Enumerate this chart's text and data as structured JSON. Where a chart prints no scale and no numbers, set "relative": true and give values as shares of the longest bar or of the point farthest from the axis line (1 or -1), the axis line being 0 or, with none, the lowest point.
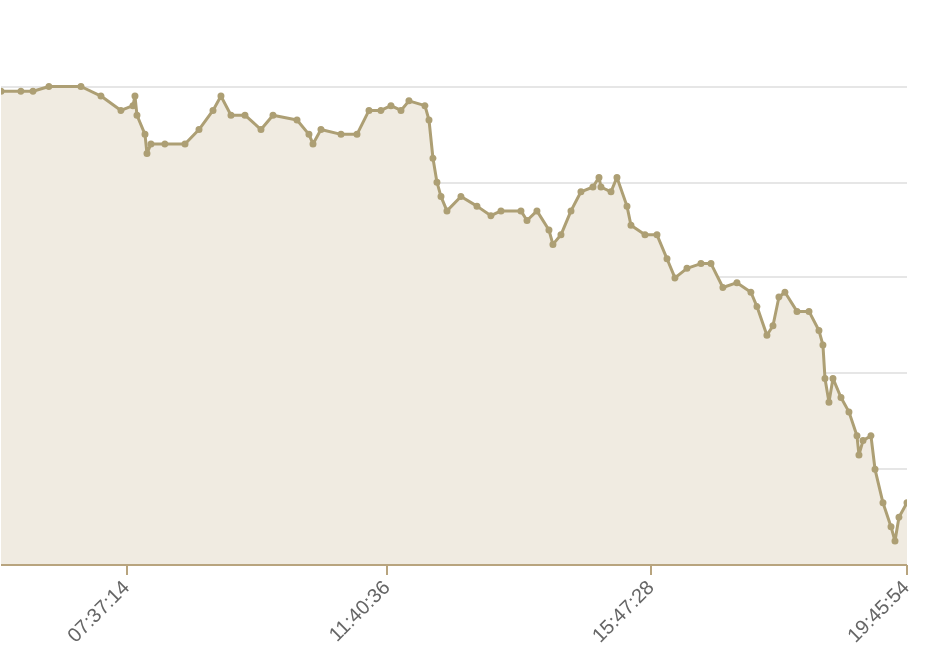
{
  "chart_data": {
    "type": "area",
    "relative": true,
    "grid": "y",
    "marker": "circle",
    "line_style": "solid",
    "xlim": [
      5.659,
      19.766
    ],
    "xticks": [
      {
        "value": 7.62056,
        "label": "07:37:14"
      },
      {
        "value": 11.67667,
        "label": "11:40:36"
      },
      {
        "value": 15.79111,
        "label": "15:47:28"
      },
      {
        "value": 19.765,
        "label": "19:45:54"
      }
    ],
    "series": [
      {
        "color": "#ad9f74",
        "x": [
          5.659,
          5.97,
          6.157,
          6.406,
          6.904,
          7.216,
          7.527,
          7.714,
          7.745,
          7.776,
          7.901,
          7.932,
          7.994,
          8.212,
          8.524,
          8.742,
          8.96,
          9.084,
          9.24,
          9.458,
          9.707,
          9.894,
          10.268,
          10.454,
          10.517,
          10.641,
          10.953,
          11.202,
          11.389,
          11.575,
          11.731,
          11.887,
          12.011,
          12.26,
          12.323,
          12.385,
          12.447,
          12.51,
          12.603,
          12.821,
          13.07,
          13.288,
          13.444,
          13.755,
          13.849,
          14.004,
          14.191,
          14.253,
          14.378,
          14.534,
          14.689,
          14.876,
          14.97,
          15.001,
          15.157,
          15.25,
          15.406,
          15.468,
          15.686,
          15.873,
          16.029,
          16.153,
          16.34,
          16.558,
          16.714,
          16.9,
          17.118,
          17.336,
          17.43,
          17.585,
          17.679,
          17.772,
          17.866,
          18.053,
          18.24,
          18.395,
          18.457,
          18.489,
          18.551,
          18.613,
          18.738,
          18.862,
          18.987,
          19.018,
          19.081,
          19.205,
          19.268,
          19.392,
          19.517,
          19.579,
          19.641,
          19.766
        ],
        "values": [
          0.99,
          0.99,
          0.99,
          1.0,
          1.0,
          0.98,
          0.95,
          0.96,
          0.98,
          0.94,
          0.9,
          0.86,
          0.88,
          0.88,
          0.88,
          0.91,
          0.95,
          0.98,
          0.94,
          0.94,
          0.91,
          0.94,
          0.93,
          0.9,
          0.88,
          0.91,
          0.9,
          0.9,
          0.95,
          0.95,
          0.96,
          0.95,
          0.97,
          0.96,
          0.93,
          0.85,
          0.8,
          0.77,
          0.74,
          0.77,
          0.75,
          0.73,
          0.74,
          0.74,
          0.72,
          0.74,
          0.7,
          0.67,
          0.69,
          0.74,
          0.78,
          0.79,
          0.81,
          0.79,
          0.78,
          0.81,
          0.75,
          0.71,
          0.69,
          0.69,
          0.64,
          0.6,
          0.62,
          0.63,
          0.63,
          0.58,
          0.59,
          0.57,
          0.54,
          0.48,
          0.5,
          0.56,
          0.57,
          0.53,
          0.53,
          0.49,
          0.46,
          0.39,
          0.34,
          0.39,
          0.35,
          0.32,
          0.27,
          0.23,
          0.26,
          0.27,
          0.2,
          0.13,
          0.08,
          0.05,
          0.1,
          0.13
        ]
      }
    ]
  }
}
